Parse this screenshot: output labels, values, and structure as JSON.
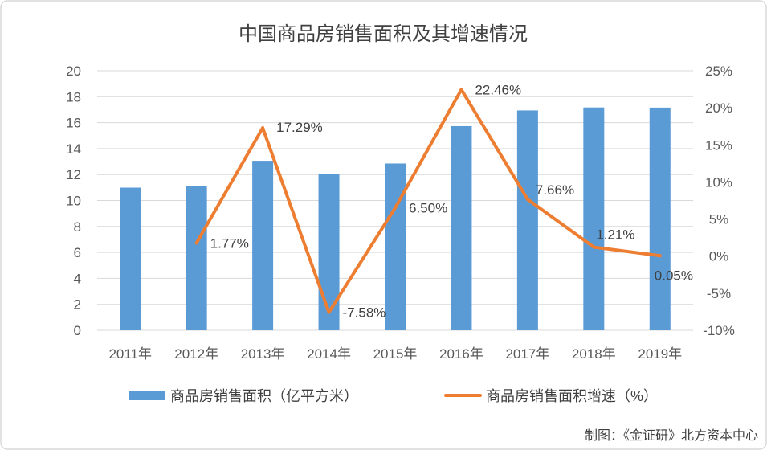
{
  "chart_data": {
    "type": "bar",
    "title": "中国商品房销售面积及其增速情况",
    "xlabel": "",
    "ylabel": "",
    "categories": [
      "2011年",
      "2012年",
      "2013年",
      "2014年",
      "2015年",
      "2016年",
      "2017年",
      "2018年",
      "2019年"
    ],
    "series": [
      {
        "name": "商品房销售面积（亿平方米）",
        "type": "bar",
        "color": "#5B9BD5",
        "values": [
          10.99,
          11.13,
          13.06,
          12.06,
          12.85,
          15.73,
          16.94,
          17.17,
          17.16
        ]
      },
      {
        "name": "商品房销售面积增速（%）",
        "type": "line",
        "color": "#ED7D31",
        "values": [
          null,
          1.77,
          17.29,
          -7.58,
          6.5,
          22.46,
          7.66,
          1.21,
          0.05
        ],
        "data_labels": [
          null,
          "1.77%",
          "17.29%",
          "-7.58%",
          "6.50%",
          "22.46%",
          "7.66%",
          "1.21%",
          "0.05%"
        ]
      }
    ],
    "y_left": {
      "ylim": [
        0,
        20
      ],
      "tick_labels": [
        "0",
        "2",
        "4",
        "6",
        "8",
        "10",
        "12",
        "14",
        "16",
        "18",
        "20"
      ]
    },
    "y_right": {
      "ylim": [
        -10,
        25
      ],
      "tick_labels": [
        "-10%",
        "-5%",
        "0%",
        "5%",
        "10%",
        "15%",
        "20%",
        "25%"
      ]
    },
    "grid": true,
    "legend": "bottom"
  },
  "footer": {
    "source": "制图：《金证研》北方资本中心"
  }
}
